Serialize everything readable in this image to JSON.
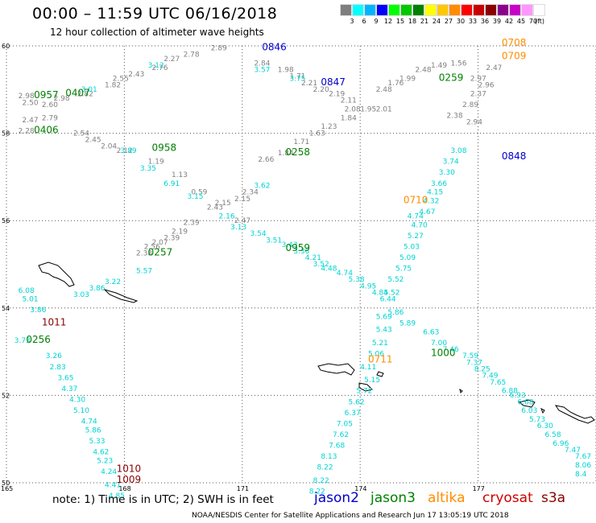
{
  "title": "00:00 – 11:59 UTC 06/16/2018",
  "subtitle": "12 hour collection of altimeter wave heights",
  "legend": {
    "colors": [
      "#7f7f7f",
      "#00ffff",
      "#00b4ff",
      "#0000ff",
      "#00ff00",
      "#00c800",
      "#008000",
      "#ffff00",
      "#ffc800",
      "#ff8c00",
      "#ff0000",
      "#c80000",
      "#8b0000",
      "#8b008b",
      "#c800c8",
      "#ff96ff",
      "#ffffff"
    ],
    "ticks": [
      "3",
      "6",
      "9",
      "12",
      "15",
      "18",
      "21",
      "24",
      "27",
      "30",
      "33",
      "36",
      "39",
      "42",
      "45",
      "70",
      "(ft)"
    ]
  },
  "axes": {
    "lat_labels": [
      "60",
      "58",
      "56",
      "54",
      "52",
      "50"
    ],
    "lon_labels": [
      "165",
      "168",
      "171",
      "174",
      "177"
    ]
  },
  "footnote": "note: 1) Time is in UTC; 2) SWH is in feet",
  "satellites": [
    {
      "name": "jason2",
      "color": "#0000cc"
    },
    {
      "name": "jason3",
      "color": "#008000"
    },
    {
      "name": "altika",
      "color": "#ff8c00"
    },
    {
      "name": "cryosat",
      "color": "#cc0000"
    },
    {
      "name": "s3a",
      "color": "#8b0000"
    }
  ],
  "credit": "NOAA/NESDIS Center for Satellite Applications and Research   Jun 17 13:05:19 UTC 2018",
  "colors": {
    "gray": "#808080",
    "cyan": "#00d2d2",
    "green": "#008000",
    "blue": "#0000cc",
    "orange": "#ff8c00",
    "darkred": "#8b0000"
  },
  "time_labels": [
    {
      "text": "0846",
      "color": "blue",
      "lon": 171.5,
      "lat": 59.9
    },
    {
      "text": "0847",
      "color": "blue",
      "lon": 173.0,
      "lat": 59.1
    },
    {
      "text": "0848",
      "color": "blue",
      "lon": 177.6,
      "lat": 57.4
    },
    {
      "text": "0957",
      "color": "green",
      "lon": 165.7,
      "lat": 58.8
    },
    {
      "text": "0407",
      "color": "green",
      "lon": 166.5,
      "lat": 58.85
    },
    {
      "text": "0406",
      "color": "green",
      "lon": 165.7,
      "lat": 58.0
    },
    {
      "text": "0958",
      "color": "green",
      "lon": 168.7,
      "lat": 57.6
    },
    {
      "text": "0258",
      "color": "green",
      "lon": 172.1,
      "lat": 57.5
    },
    {
      "text": "0259",
      "color": "green",
      "lon": 176.0,
      "lat": 59.2
    },
    {
      "text": "0257",
      "color": "green",
      "lon": 168.6,
      "lat": 55.2
    },
    {
      "text": "0959",
      "color": "green",
      "lon": 172.1,
      "lat": 55.3
    },
    {
      "text": "0256",
      "color": "green",
      "lon": 165.5,
      "lat": 53.2
    },
    {
      "text": "1000",
      "color": "green",
      "lon": 175.8,
      "lat": 52.9
    },
    {
      "text": "0708",
      "color": "orange",
      "lon": 177.6,
      "lat": 60.0
    },
    {
      "text": "0709",
      "color": "orange",
      "lon": 177.6,
      "lat": 59.7
    },
    {
      "text": "0710",
      "color": "orange",
      "lon": 175.1,
      "lat": 56.4
    },
    {
      "text": "0711",
      "color": "orange",
      "lon": 174.2,
      "lat": 52.75
    },
    {
      "text": "1011",
      "color": "darkred",
      "lon": 165.9,
      "lat": 53.6
    },
    {
      "text": "1010",
      "color": "darkred",
      "lon": 167.8,
      "lat": 50.25
    },
    {
      "text": "1009",
      "color": "darkred",
      "lon": 167.8,
      "lat": 50.0
    }
  ],
  "swh_labels": [
    {
      "text": "2.89",
      "color": "gray",
      "lon": 170.2,
      "lat": 59.9
    },
    {
      "text": "2.78",
      "color": "gray",
      "lon": 169.5,
      "lat": 59.75
    },
    {
      "text": "2.27",
      "color": "gray",
      "lon": 169.0,
      "lat": 59.65
    },
    {
      "text": "2.76",
      "color": "gray",
      "lon": 168.7,
      "lat": 59.45
    },
    {
      "text": "2.43",
      "color": "gray",
      "lon": 168.1,
      "lat": 59.3
    },
    {
      "text": "2.55",
      "color": "gray",
      "lon": 167.7,
      "lat": 59.2
    },
    {
      "text": "1.82",
      "color": "gray",
      "lon": 167.5,
      "lat": 59.05
    },
    {
      "text": "2.82",
      "color": "gray",
      "lon": 166.8,
      "lat": 58.85
    },
    {
      "text": "2.98",
      "color": "gray",
      "lon": 166.2,
      "lat": 58.75
    },
    {
      "text": "2.98",
      "color": "gray",
      "lon": 165.3,
      "lat": 58.8
    },
    {
      "text": "2.50",
      "color": "gray",
      "lon": 165.4,
      "lat": 58.65
    },
    {
      "text": "2.60",
      "color": "gray",
      "lon": 165.9,
      "lat": 58.6
    },
    {
      "text": "2.79",
      "color": "gray",
      "lon": 165.9,
      "lat": 58.3
    },
    {
      "text": "2.47",
      "color": "gray",
      "lon": 165.4,
      "lat": 58.25
    },
    {
      "text": "2.28",
      "color": "gray",
      "lon": 165.3,
      "lat": 58.0
    },
    {
      "text": "2.54",
      "color": "gray",
      "lon": 166.7,
      "lat": 57.95
    },
    {
      "text": "2.45",
      "color": "gray",
      "lon": 167.0,
      "lat": 57.8
    },
    {
      "text": "2.04",
      "color": "gray",
      "lon": 167.4,
      "lat": 57.65
    },
    {
      "text": "2.12",
      "color": "gray",
      "lon": 167.8,
      "lat": 57.55
    },
    {
      "text": "1.19",
      "color": "gray",
      "lon": 168.6,
      "lat": 57.3
    },
    {
      "text": "1.13",
      "color": "gray",
      "lon": 169.2,
      "lat": 57.0
    },
    {
      "text": "0.59",
      "color": "gray",
      "lon": 169.7,
      "lat": 56.6
    },
    {
      "text": "2.15",
      "color": "gray",
      "lon": 170.3,
      "lat": 56.35
    },
    {
      "text": "2.43",
      "color": "gray",
      "lon": 170.1,
      "lat": 56.25
    },
    {
      "text": "2.47",
      "color": "gray",
      "lon": 170.8,
      "lat": 55.95
    },
    {
      "text": "2.39",
      "color": "gray",
      "lon": 169.5,
      "lat": 55.9
    },
    {
      "text": "2.19",
      "color": "gray",
      "lon": 169.2,
      "lat": 55.7
    },
    {
      "text": "2.39",
      "color": "gray",
      "lon": 169.0,
      "lat": 55.55
    },
    {
      "text": "2.07",
      "color": "gray",
      "lon": 168.7,
      "lat": 55.45
    },
    {
      "text": "2.56",
      "color": "gray",
      "lon": 168.5,
      "lat": 55.35
    },
    {
      "text": "2.38",
      "color": "gray",
      "lon": 168.3,
      "lat": 55.2
    },
    {
      "text": "2.15",
      "color": "gray",
      "lon": 170.8,
      "lat": 56.45
    },
    {
      "text": "2.34",
      "color": "gray",
      "lon": 171.0,
      "lat": 56.6
    },
    {
      "text": "2.66",
      "color": "gray",
      "lon": 171.4,
      "lat": 57.35
    },
    {
      "text": "1.84",
      "color": "gray",
      "lon": 171.9,
      "lat": 57.5
    },
    {
      "text": "1.71",
      "color": "gray",
      "lon": 172.3,
      "lat": 57.75
    },
    {
      "text": "1.63",
      "color": "gray",
      "lon": 172.7,
      "lat": 57.95
    },
    {
      "text": "1.23",
      "color": "gray",
      "lon": 173.0,
      "lat": 58.1
    },
    {
      "text": "1.84",
      "color": "gray",
      "lon": 173.5,
      "lat": 58.3
    },
    {
      "text": "2.08",
      "color": "gray",
      "lon": 173.6,
      "lat": 58.5
    },
    {
      "text": "2.48",
      "color": "gray",
      "lon": 174.4,
      "lat": 58.95
    },
    {
      "text": "1.76",
      "color": "gray",
      "lon": 174.7,
      "lat": 59.1
    },
    {
      "text": "1.99",
      "color": "gray",
      "lon": 175.0,
      "lat": 59.2
    },
    {
      "text": "2.48",
      "color": "gray",
      "lon": 175.4,
      "lat": 59.4
    },
    {
      "text": "1.49",
      "color": "gray",
      "lon": 175.8,
      "lat": 59.5
    },
    {
      "text": "1.56",
      "color": "gray",
      "lon": 176.3,
      "lat": 59.55
    },
    {
      "text": "2.97",
      "color": "gray",
      "lon": 176.8,
      "lat": 59.2
    },
    {
      "text": "2.47",
      "color": "gray",
      "lon": 177.2,
      "lat": 59.45
    },
    {
      "text": "2.96",
      "color": "gray",
      "lon": 177.0,
      "lat": 59.05
    },
    {
      "text": "2.37",
      "color": "gray",
      "lon": 176.8,
      "lat": 58.85
    },
    {
      "text": "2.89",
      "color": "gray",
      "lon": 176.6,
      "lat": 58.6
    },
    {
      "text": "2.38",
      "color": "gray",
      "lon": 176.2,
      "lat": 58.35
    },
    {
      "text": "2.94",
      "color": "gray",
      "lon": 176.7,
      "lat": 58.2
    },
    {
      "text": "2.84",
      "color": "gray",
      "lon": 171.3,
      "lat": 59.55
    },
    {
      "text": "1.98",
      "color": "gray",
      "lon": 171.9,
      "lat": 59.4
    },
    {
      "text": "1.71",
      "color": "gray",
      "lon": 172.2,
      "lat": 59.25
    },
    {
      "text": "2.21",
      "color": "gray",
      "lon": 172.5,
      "lat": 59.1
    },
    {
      "text": "2.20",
      "color": "gray",
      "lon": 172.8,
      "lat": 58.95
    },
    {
      "text": "2.19",
      "color": "gray",
      "lon": 173.2,
      "lat": 58.85
    },
    {
      "text": "2.11",
      "color": "gray",
      "lon": 173.5,
      "lat": 58.7
    },
    {
      "text": "1.95",
      "color": "gray",
      "lon": 174.0,
      "lat": 58.5
    },
    {
      "text": "2.01",
      "color": "gray",
      "lon": 174.4,
      "lat": 58.5
    },
    {
      "text": "3.12",
      "color": "cyan",
      "lon": 168.6,
      "lat": 59.5
    },
    {
      "text": "3.01",
      "color": "cyan",
      "lon": 166.9,
      "lat": 58.95
    },
    {
      "text": "3.89",
      "color": "cyan",
      "lon": 167.9,
      "lat": 57.55
    },
    {
      "text": "3.35",
      "color": "cyan",
      "lon": 168.4,
      "lat": 57.15
    },
    {
      "text": "6.91",
      "color": "cyan",
      "lon": 169.0,
      "lat": 56.8
    },
    {
      "text": "3.15",
      "color": "cyan",
      "lon": 169.6,
      "lat": 56.5
    },
    {
      "text": "3.62",
      "color": "cyan",
      "lon": 171.3,
      "lat": 56.75
    },
    {
      "text": "2.16",
      "color": "cyan",
      "lon": 170.4,
      "lat": 56.05
    },
    {
      "text": "3.13",
      "color": "cyan",
      "lon": 170.7,
      "lat": 55.8
    },
    {
      "text": "3.54",
      "color": "cyan",
      "lon": 171.2,
      "lat": 55.65
    },
    {
      "text": "3.51",
      "color": "cyan",
      "lon": 171.6,
      "lat": 55.5
    },
    {
      "text": "3.43",
      "color": "cyan",
      "lon": 172.0,
      "lat": 55.4
    },
    {
      "text": "3.36",
      "color": "cyan",
      "lon": 172.3,
      "lat": 55.25
    },
    {
      "text": "4.21",
      "color": "cyan",
      "lon": 172.6,
      "lat": 55.1
    },
    {
      "text": "3.52",
      "color": "cyan",
      "lon": 172.8,
      "lat": 54.95
    },
    {
      "text": "4.48",
      "color": "cyan",
      "lon": 173.0,
      "lat": 54.85
    },
    {
      "text": "4.74",
      "color": "cyan",
      "lon": 173.4,
      "lat": 54.75
    },
    {
      "text": "5.38",
      "color": "cyan",
      "lon": 173.7,
      "lat": 54.6
    },
    {
      "text": "4.95",
      "color": "cyan",
      "lon": 174.0,
      "lat": 54.45
    },
    {
      "text": "4.84",
      "color": "cyan",
      "lon": 174.3,
      "lat": 54.3
    },
    {
      "text": "6.44",
      "color": "cyan",
      "lon": 174.5,
      "lat": 54.15
    },
    {
      "text": "5.86",
      "color": "cyan",
      "lon": 174.7,
      "lat": 53.85
    },
    {
      "text": "5.89",
      "color": "cyan",
      "lon": 175.0,
      "lat": 53.6
    },
    {
      "text": "6.63",
      "color": "cyan",
      "lon": 175.6,
      "lat": 53.4
    },
    {
      "text": "7.00",
      "color": "cyan",
      "lon": 175.8,
      "lat": 53.15
    },
    {
      "text": "7.46",
      "color": "cyan",
      "lon": 176.1,
      "lat": 53.0
    },
    {
      "text": "7.59",
      "color": "cyan",
      "lon": 176.6,
      "lat": 52.85
    },
    {
      "text": "7.37",
      "color": "cyan",
      "lon": 176.7,
      "lat": 52.7
    },
    {
      "text": "8.25",
      "color": "cyan",
      "lon": 176.9,
      "lat": 52.55
    },
    {
      "text": "7.49",
      "color": "cyan",
      "lon": 177.1,
      "lat": 52.4
    },
    {
      "text": "7.65",
      "color": "cyan",
      "lon": 177.3,
      "lat": 52.25
    },
    {
      "text": "6.88",
      "color": "cyan",
      "lon": 177.6,
      "lat": 52.05
    },
    {
      "text": "6.93",
      "color": "cyan",
      "lon": 177.8,
      "lat": 51.95
    },
    {
      "text": "6.68",
      "color": "cyan",
      "lon": 178.0,
      "lat": 51.8
    },
    {
      "text": "6.03",
      "color": "cyan",
      "lon": 178.1,
      "lat": 51.6
    },
    {
      "text": "5.73",
      "color": "cyan",
      "lon": 178.3,
      "lat": 51.4
    },
    {
      "text": "6.30",
      "color": "cyan",
      "lon": 178.5,
      "lat": 51.25
    },
    {
      "text": "6.58",
      "color": "cyan",
      "lon": 178.7,
      "lat": 51.05
    },
    {
      "text": "6.96",
      "color": "cyan",
      "lon": 178.9,
      "lat": 50.85
    },
    {
      "text": "7.47",
      "color": "cyan",
      "lon": 179.2,
      "lat": 50.7
    },
    {
      "text": "7.67",
      "color": "cyan",
      "lon": 179.5,
      "lat": 50.55
    },
    {
      "text": "8.06",
      "color": "cyan",
      "lon": 179.8,
      "lat": 50.35
    },
    {
      "text": "8.4",
      "color": "cyan",
      "lon": 180.0,
      "lat": 50.15
    },
    {
      "text": "5.57",
      "color": "cyan",
      "lon": 168.3,
      "lat": 54.8
    },
    {
      "text": "3.22",
      "color": "cyan",
      "lon": 167.5,
      "lat": 54.55
    },
    {
      "text": "3.86",
      "color": "cyan",
      "lon": 167.1,
      "lat": 54.4
    },
    {
      "text": "3.03",
      "color": "cyan",
      "lon": 166.7,
      "lat": 54.25
    },
    {
      "text": "6.08",
      "color": "cyan",
      "lon": 165.3,
      "lat": 54.35
    },
    {
      "text": "5.01",
      "color": "cyan",
      "lon": 165.4,
      "lat": 54.15
    },
    {
      "text": "3.86",
      "color": "cyan",
      "lon": 165.6,
      "lat": 53.9
    },
    {
      "text": "3.73",
      "color": "cyan",
      "lon": 165.2,
      "lat": 53.2
    },
    {
      "text": "3.26",
      "color": "cyan",
      "lon": 166.0,
      "lat": 52.85
    },
    {
      "text": "2.83",
      "color": "cyan",
      "lon": 166.1,
      "lat": 52.6
    },
    {
      "text": "3.65",
      "color": "cyan",
      "lon": 166.3,
      "lat": 52.35
    },
    {
      "text": "4.37",
      "color": "cyan",
      "lon": 166.4,
      "lat": 52.1
    },
    {
      "text": "4.30",
      "color": "cyan",
      "lon": 166.6,
      "lat": 51.85
    },
    {
      "text": "5.10",
      "color": "cyan",
      "lon": 166.7,
      "lat": 51.6
    },
    {
      "text": "4.74",
      "color": "cyan",
      "lon": 166.9,
      "lat": 51.35
    },
    {
      "text": "5.86",
      "color": "cyan",
      "lon": 167.0,
      "lat": 51.15
    },
    {
      "text": "5.33",
      "color": "cyan",
      "lon": 167.1,
      "lat": 50.9
    },
    {
      "text": "4.62",
      "color": "cyan",
      "lon": 167.2,
      "lat": 50.65
    },
    {
      "text": "5.23",
      "color": "cyan",
      "lon": 167.3,
      "lat": 50.45
    },
    {
      "text": "4.24",
      "color": "cyan",
      "lon": 167.4,
      "lat": 50.2
    },
    {
      "text": "4.41",
      "color": "cyan",
      "lon": 167.5,
      "lat": 49.9
    },
    {
      "text": "4.85",
      "color": "cyan",
      "lon": 167.6,
      "lat": 49.65
    },
    {
      "text": "8.22",
      "color": "cyan",
      "lon": 172.7,
      "lat": 49.75
    },
    {
      "text": "8.22",
      "color": "cyan",
      "lon": 172.8,
      "lat": 50.0
    },
    {
      "text": "8.22",
      "color": "cyan",
      "lon": 172.9,
      "lat": 50.3
    },
    {
      "text": "8.13",
      "color": "cyan",
      "lon": 173.0,
      "lat": 50.55
    },
    {
      "text": "7.68",
      "color": "cyan",
      "lon": 173.2,
      "lat": 50.8
    },
    {
      "text": "7.62",
      "color": "cyan",
      "lon": 173.3,
      "lat": 51.05
    },
    {
      "text": "7.05",
      "color": "cyan",
      "lon": 173.4,
      "lat": 51.3
    },
    {
      "text": "6.37",
      "color": "cyan",
      "lon": 173.6,
      "lat": 51.55
    },
    {
      "text": "5.62",
      "color": "cyan",
      "lon": 173.7,
      "lat": 51.8
    },
    {
      "text": "5.72",
      "color": "cyan",
      "lon": 173.9,
      "lat": 52.05
    },
    {
      "text": "5.15",
      "color": "cyan",
      "lon": 174.1,
      "lat": 52.3
    },
    {
      "text": "4.11",
      "color": "cyan",
      "lon": 174.0,
      "lat": 52.6
    },
    {
      "text": "5.06",
      "color": "cyan",
      "lon": 174.2,
      "lat": 52.9
    },
    {
      "text": "5.21",
      "color": "cyan",
      "lon": 174.3,
      "lat": 53.15
    },
    {
      "text": "5.43",
      "color": "cyan",
      "lon": 174.4,
      "lat": 53.45
    },
    {
      "text": "5.69",
      "color": "cyan",
      "lon": 174.4,
      "lat": 53.75
    },
    {
      "text": "5.52",
      "color": "cyan",
      "lon": 174.6,
      "lat": 54.3
    },
    {
      "text": "5.52",
      "color": "cyan",
      "lon": 174.7,
      "lat": 54.6
    },
    {
      "text": "5.75",
      "color": "cyan",
      "lon": 174.9,
      "lat": 54.85
    },
    {
      "text": "5.09",
      "color": "cyan",
      "lon": 175.0,
      "lat": 55.1
    },
    {
      "text": "5.03",
      "color": "cyan",
      "lon": 175.1,
      "lat": 55.35
    },
    {
      "text": "5.27",
      "color": "cyan",
      "lon": 175.2,
      "lat": 55.6
    },
    {
      "text": "4.70",
      "color": "cyan",
      "lon": 175.3,
      "lat": 55.85
    },
    {
      "text": "4.74",
      "color": "cyan",
      "lon": 175.2,
      "lat": 56.05
    },
    {
      "text": "4.67",
      "color": "cyan",
      "lon": 175.5,
      "lat": 56.15
    },
    {
      "text": "4.32",
      "color": "cyan",
      "lon": 175.6,
      "lat": 56.4
    },
    {
      "text": "4.15",
      "color": "cyan",
      "lon": 175.7,
      "lat": 56.6
    },
    {
      "text": "3.66",
      "color": "cyan",
      "lon": 175.8,
      "lat": 56.8
    },
    {
      "text": "3.30",
      "color": "cyan",
      "lon": 176.0,
      "lat": 57.05
    },
    {
      "text": "3.74",
      "color": "cyan",
      "lon": 176.1,
      "lat": 57.3
    },
    {
      "text": "3.08",
      "color": "cyan",
      "lon": 176.3,
      "lat": 57.55
    },
    {
      "text": "3.75",
      "color": "cyan",
      "lon": 172.2,
      "lat": 59.2
    },
    {
      "text": "3.57",
      "color": "cyan",
      "lon": 171.3,
      "lat": 59.4
    }
  ]
}
